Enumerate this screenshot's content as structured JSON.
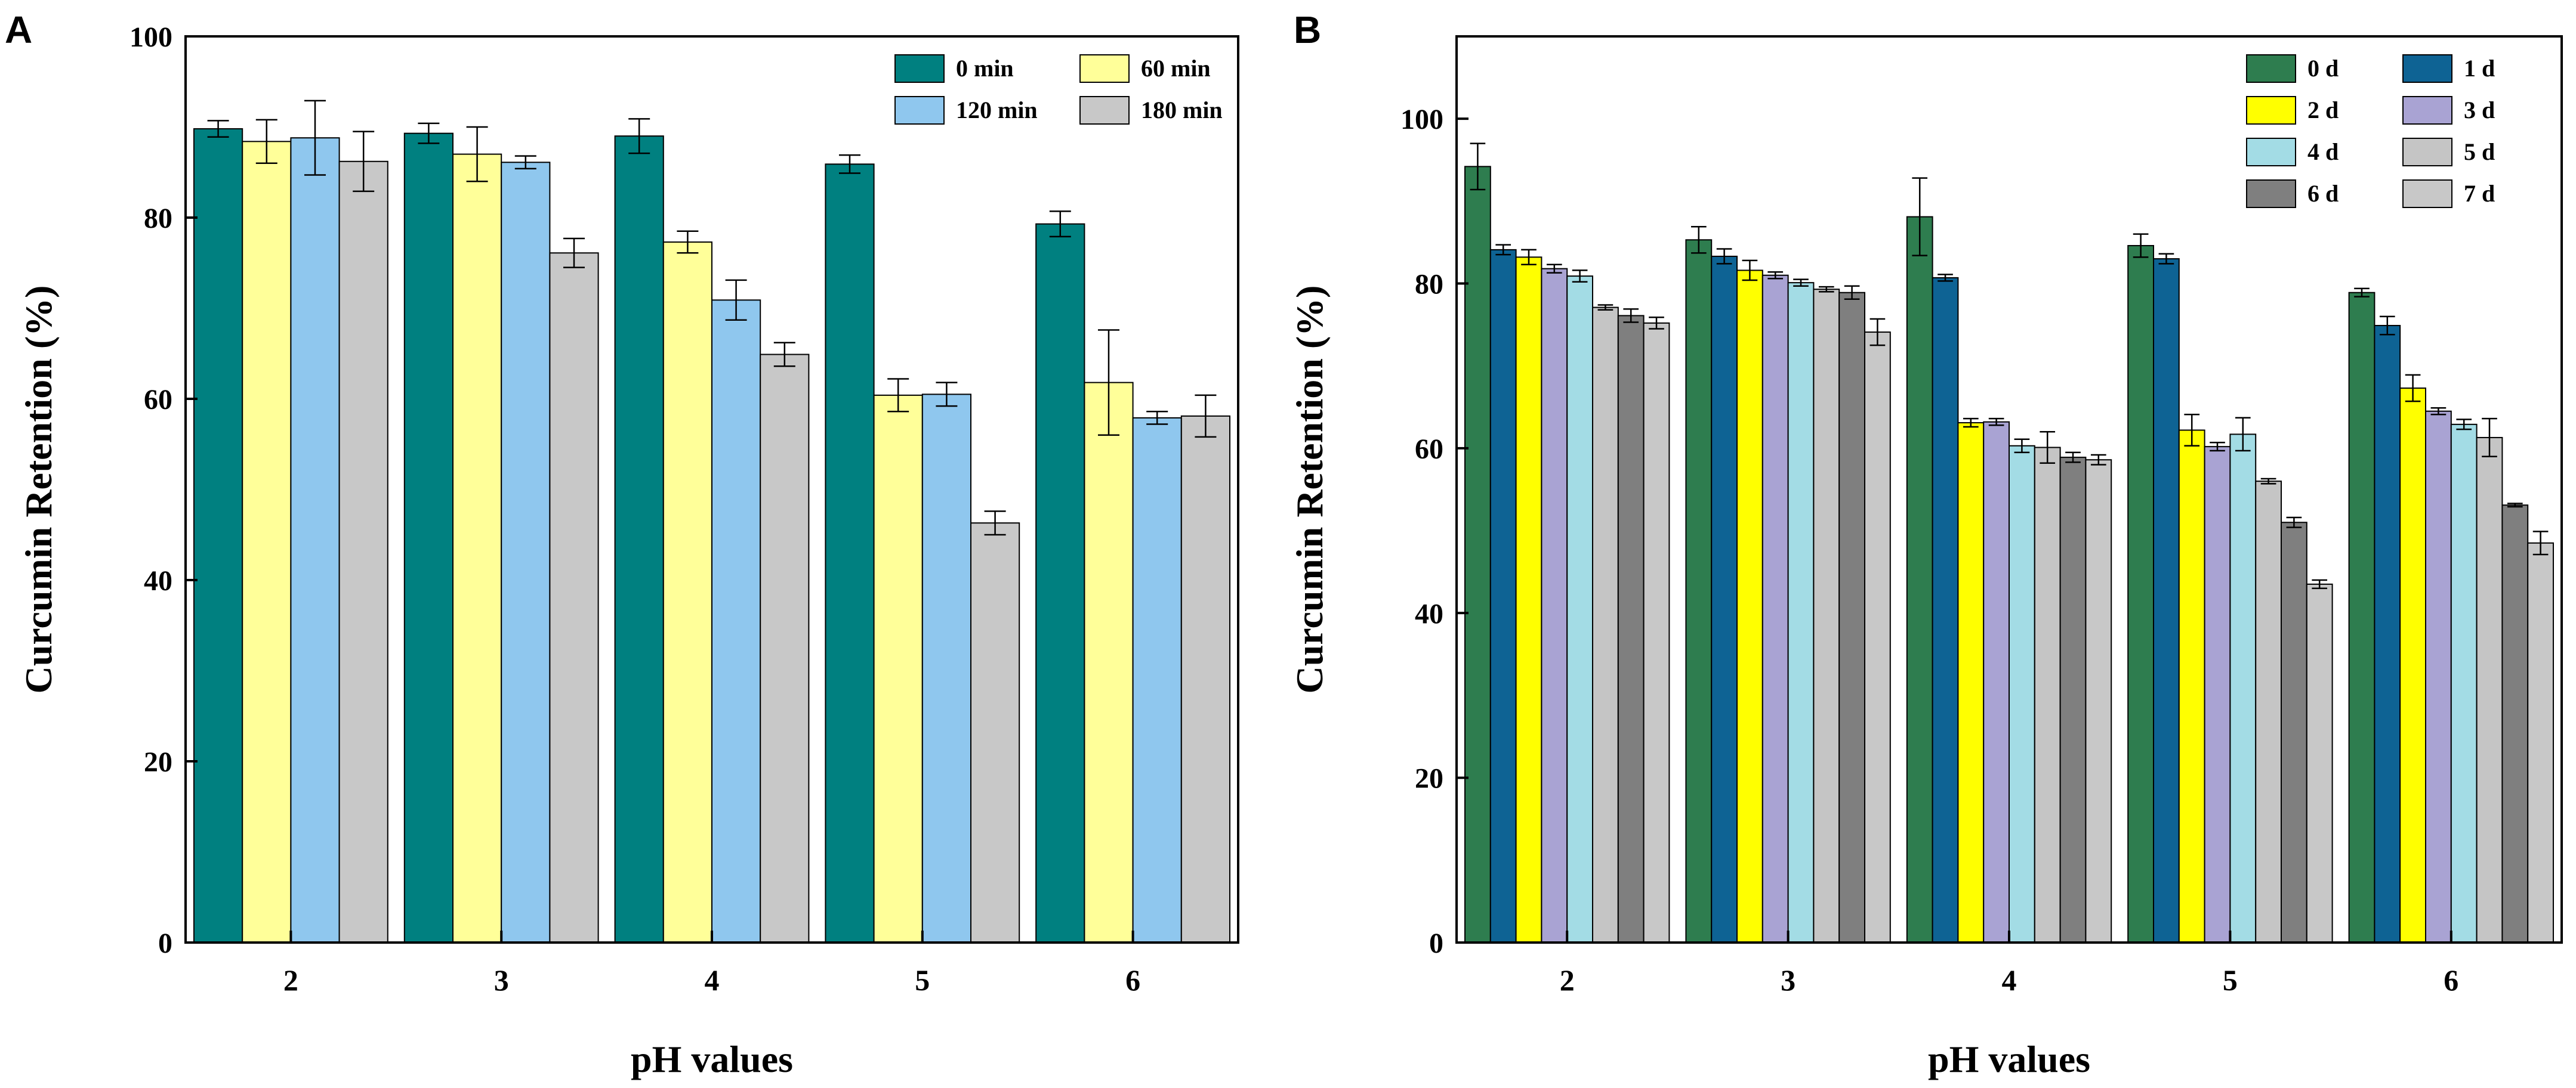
{
  "chart_data": [
    {
      "panel_label": "A",
      "type": "bar",
      "xlabel": "pH values",
      "ylabel": "Curcumin Retention (%)",
      "ylim": [
        0,
        100
      ],
      "yticks": [
        0,
        20,
        40,
        60,
        80,
        100
      ],
      "categories": [
        "2",
        "3",
        "4",
        "5",
        "6"
      ],
      "legend_position": "top-right",
      "series": [
        {
          "name": "0  min",
          "color": "#008080",
          "values": [
            89.8,
            89.3,
            89.0,
            85.9,
            79.3
          ],
          "errors": [
            0.9,
            1.1,
            1.9,
            1.0,
            1.4
          ]
        },
        {
          "name": "60 min",
          "color": "#FFFF99",
          "values": [
            88.4,
            87.0,
            77.3,
            60.4,
            61.8
          ],
          "errors": [
            2.4,
            3.0,
            1.2,
            1.8,
            5.8
          ]
        },
        {
          "name": "120 min",
          "color": "#8FC7EE",
          "values": [
            88.8,
            86.1,
            70.9,
            60.5,
            57.9
          ],
          "errors": [
            4.1,
            0.7,
            2.2,
            1.3,
            0.7
          ]
        },
        {
          "name": "180 min",
          "color": "#C8C8C8",
          "values": [
            86.2,
            76.1,
            64.9,
            46.3,
            58.1
          ],
          "errors": [
            3.3,
            1.6,
            1.3,
            1.3,
            2.3
          ]
        }
      ]
    },
    {
      "panel_label": "B",
      "type": "bar",
      "xlabel": "pH values",
      "ylabel": "Curcumin Retention (%)",
      "ylim": [
        0,
        110
      ],
      "yticks": [
        0,
        20,
        40,
        60,
        80,
        100
      ],
      "categories": [
        "2",
        "3",
        "4",
        "5",
        "6"
      ],
      "legend_position": "top-right",
      "series": [
        {
          "name": "0 d",
          "color": "#2E7D4F",
          "values": [
            94.2,
            85.3,
            88.1,
            84.6,
            78.9
          ],
          "errors": [
            2.8,
            1.6,
            4.7,
            1.4,
            0.5
          ]
        },
        {
          "name": "1 d",
          "color": "#0E6394",
          "values": [
            84.1,
            83.3,
            80.7,
            83.0,
            74.9
          ],
          "errors": [
            0.6,
            0.9,
            0.4,
            0.6,
            1.1
          ]
        },
        {
          "name": "2 d",
          "color": "#FFFF00",
          "values": [
            83.2,
            81.6,
            63.1,
            62.2,
            67.3
          ],
          "errors": [
            0.9,
            1.2,
            0.5,
            1.9,
            1.6
          ]
        },
        {
          "name": "3 d",
          "color": "#A9A3D3",
          "values": [
            81.8,
            81.0,
            63.2,
            60.2,
            64.5
          ],
          "errors": [
            0.5,
            0.4,
            0.4,
            0.5,
            0.4
          ]
        },
        {
          "name": "4 d",
          "color": "#A3DCE5",
          "values": [
            80.9,
            80.1,
            60.3,
            61.7,
            62.9
          ],
          "errors": [
            0.7,
            0.4,
            0.8,
            2.0,
            0.6
          ]
        },
        {
          "name": "5 d",
          "color": "#C5C5C5",
          "values": [
            77.1,
            79.3,
            60.1,
            56.0,
            61.3
          ],
          "errors": [
            0.3,
            0.3,
            1.9,
            0.3,
            2.3
          ]
        },
        {
          "name": "6 d",
          "color": "#7F7F7F",
          "values": [
            76.1,
            78.9,
            58.9,
            51.0,
            53.1
          ],
          "errors": [
            0.8,
            0.8,
            0.6,
            0.6,
            0.2
          ]
        },
        {
          "name": "7 d",
          "color": "#C8C8C8",
          "values": [
            75.2,
            74.1,
            58.6,
            43.5,
            48.5
          ],
          "errors": [
            0.7,
            1.6,
            0.6,
            0.5,
            1.4
          ]
        }
      ]
    }
  ]
}
